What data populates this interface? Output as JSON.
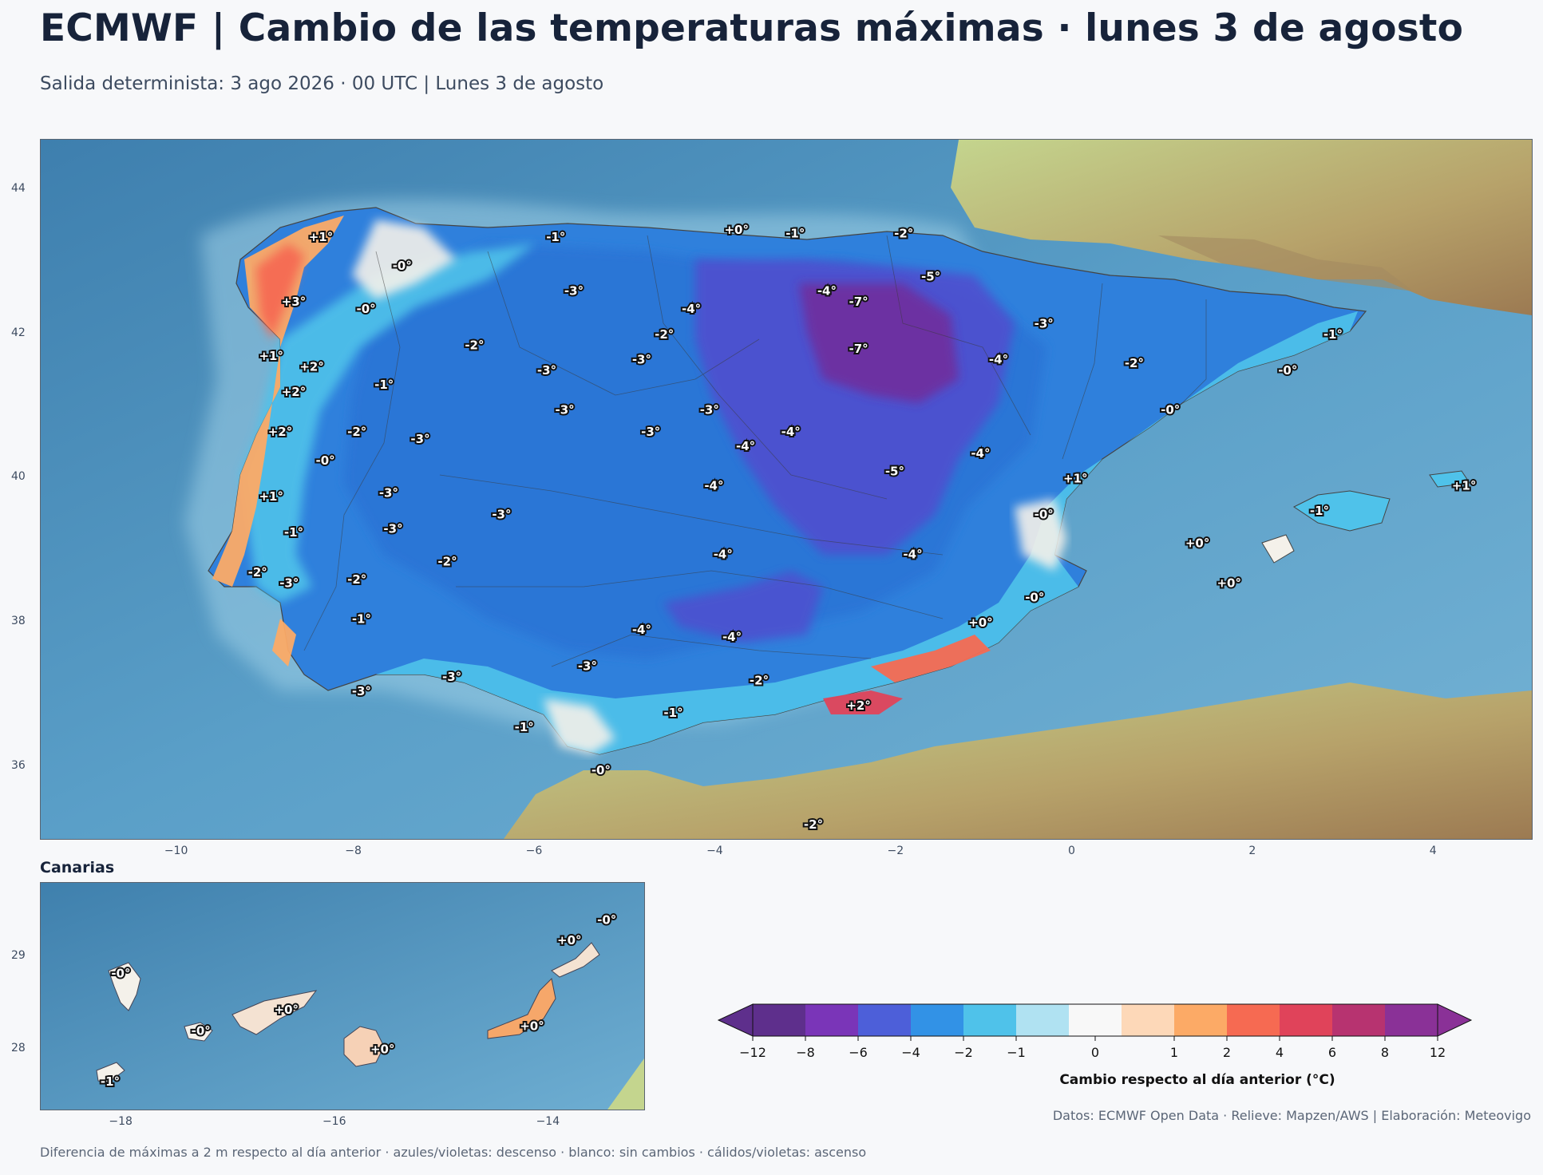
{
  "header": {
    "title": "ECMWF | Cambio de las temperaturas máximas · lunes 3 de agosto",
    "subtitle": "Salida determinista: 3 ago 2026 · 00 UTC  |  Lunes 3 de agosto"
  },
  "main_map": {
    "lon_range": [
      -11.5,
      5.0
    ],
    "lat_range": [
      35.0,
      44.7
    ],
    "x_ticks": [
      "−10",
      "−8",
      "−6",
      "−4",
      "−2",
      "0",
      "2",
      "4"
    ],
    "y_ticks": [
      "44",
      "42",
      "40",
      "38",
      "36"
    ],
    "labels": [
      {
        "lon": -8.4,
        "lat": 43.35,
        "text": "+1°"
      },
      {
        "lon": -7.5,
        "lat": 42.95,
        "text": "-0°"
      },
      {
        "lon": -5.8,
        "lat": 43.35,
        "text": "-1°"
      },
      {
        "lon": -3.8,
        "lat": 43.45,
        "text": "+0°"
      },
      {
        "lon": -3.15,
        "lat": 43.4,
        "text": "-1°"
      },
      {
        "lon": -1.95,
        "lat": 43.4,
        "text": "-2°"
      },
      {
        "lon": -8.7,
        "lat": 42.45,
        "text": "+3°"
      },
      {
        "lon": -7.9,
        "lat": 42.35,
        "text": "-0°"
      },
      {
        "lon": -5.6,
        "lat": 42.6,
        "text": "-3°"
      },
      {
        "lon": -4.3,
        "lat": 42.35,
        "text": "-4°"
      },
      {
        "lon": -2.8,
        "lat": 42.6,
        "text": "-4°"
      },
      {
        "lon": -2.45,
        "lat": 42.45,
        "text": "-7°"
      },
      {
        "lon": -1.65,
        "lat": 42.8,
        "text": "-5°"
      },
      {
        "lon": -0.4,
        "lat": 42.15,
        "text": "-3°"
      },
      {
        "lon": 2.8,
        "lat": 42.0,
        "text": "-1°"
      },
      {
        "lon": -4.6,
        "lat": 42.0,
        "text": "-2°"
      },
      {
        "lon": -6.7,
        "lat": 41.85,
        "text": "-2°"
      },
      {
        "lon": -8.95,
        "lat": 41.7,
        "text": "+1°"
      },
      {
        "lon": -8.5,
        "lat": 41.55,
        "text": "+2°"
      },
      {
        "lon": -5.9,
        "lat": 41.5,
        "text": "-3°"
      },
      {
        "lon": -4.85,
        "lat": 41.65,
        "text": "-3°"
      },
      {
        "lon": -2.45,
        "lat": 41.8,
        "text": "-7°"
      },
      {
        "lon": -0.9,
        "lat": 41.65,
        "text": "-4°"
      },
      {
        "lon": 0.6,
        "lat": 41.6,
        "text": "-2°"
      },
      {
        "lon": 2.3,
        "lat": 41.5,
        "text": "-0°"
      },
      {
        "lon": -7.7,
        "lat": 41.3,
        "text": "-1°"
      },
      {
        "lon": -8.7,
        "lat": 41.2,
        "text": "+2°"
      },
      {
        "lon": -5.7,
        "lat": 40.95,
        "text": "-3°"
      },
      {
        "lon": -4.1,
        "lat": 40.95,
        "text": "-3°"
      },
      {
        "lon": 1.0,
        "lat": 40.95,
        "text": "-0°"
      },
      {
        "lon": -8.85,
        "lat": 40.65,
        "text": "+2°"
      },
      {
        "lon": -8.0,
        "lat": 40.65,
        "text": "-2°"
      },
      {
        "lon": -7.3,
        "lat": 40.55,
        "text": "-3°"
      },
      {
        "lon": -4.75,
        "lat": 40.65,
        "text": "-3°"
      },
      {
        "lon": -3.2,
        "lat": 40.65,
        "text": "-4°"
      },
      {
        "lon": -3.7,
        "lat": 40.45,
        "text": "-4°"
      },
      {
        "lon": -1.1,
        "lat": 40.35,
        "text": "-4°"
      },
      {
        "lon": -8.35,
        "lat": 40.25,
        "text": "-0°"
      },
      {
        "lon": -2.05,
        "lat": 40.1,
        "text": "-5°"
      },
      {
        "lon": -0.05,
        "lat": 40.0,
        "text": "+1°"
      },
      {
        "lon": -4.05,
        "lat": 39.9,
        "text": "-4°"
      },
      {
        "lon": 4.25,
        "lat": 39.9,
        "text": "+1°"
      },
      {
        "lon": -8.95,
        "lat": 39.75,
        "text": "+1°"
      },
      {
        "lon": -7.65,
        "lat": 39.8,
        "text": "-3°"
      },
      {
        "lon": -6.4,
        "lat": 39.5,
        "text": "-3°"
      },
      {
        "lon": -0.4,
        "lat": 39.5,
        "text": "-0°"
      },
      {
        "lon": 2.65,
        "lat": 39.55,
        "text": "-1°"
      },
      {
        "lon": -8.7,
        "lat": 39.25,
        "text": "-1°"
      },
      {
        "lon": -7.6,
        "lat": 39.3,
        "text": "-3°"
      },
      {
        "lon": 1.3,
        "lat": 39.1,
        "text": "+0°"
      },
      {
        "lon": -3.95,
        "lat": 38.95,
        "text": "-4°"
      },
      {
        "lon": -1.85,
        "lat": 38.95,
        "text": "-4°"
      },
      {
        "lon": -7.0,
        "lat": 38.85,
        "text": "-2°"
      },
      {
        "lon": -9.1,
        "lat": 38.7,
        "text": "-2°"
      },
      {
        "lon": -8.75,
        "lat": 38.55,
        "text": "-3°"
      },
      {
        "lon": -8.0,
        "lat": 38.6,
        "text": "-2°"
      },
      {
        "lon": 1.65,
        "lat": 38.55,
        "text": "+0°"
      },
      {
        "lon": -0.5,
        "lat": 38.35,
        "text": "-0°"
      },
      {
        "lon": -7.95,
        "lat": 38.05,
        "text": "-1°"
      },
      {
        "lon": -1.1,
        "lat": 38.0,
        "text": "+0°"
      },
      {
        "lon": -4.85,
        "lat": 37.9,
        "text": "-4°"
      },
      {
        "lon": -3.85,
        "lat": 37.8,
        "text": "-4°"
      },
      {
        "lon": -5.45,
        "lat": 37.4,
        "text": "-3°"
      },
      {
        "lon": -6.95,
        "lat": 37.25,
        "text": "-3°"
      },
      {
        "lon": -3.55,
        "lat": 37.2,
        "text": "-2°"
      },
      {
        "lon": -7.95,
        "lat": 37.05,
        "text": "-3°"
      },
      {
        "lon": -2.45,
        "lat": 36.85,
        "text": "+2°"
      },
      {
        "lon": -4.5,
        "lat": 36.75,
        "text": "-1°"
      },
      {
        "lon": -6.15,
        "lat": 36.55,
        "text": "-1°"
      },
      {
        "lon": -5.3,
        "lat": 35.95,
        "text": "-0°"
      },
      {
        "lon": -2.95,
        "lat": 35.2,
        "text": "-2°"
      }
    ]
  },
  "inset": {
    "title": "Canarias",
    "lon_range": [
      -18.75,
      -13.1
    ],
    "lat_range": [
      27.35,
      29.8
    ],
    "x_ticks": [
      "−18",
      "−16",
      "−14"
    ],
    "y_ticks": [
      "29",
      "28"
    ],
    "labels": [
      {
        "lon": -18.0,
        "lat": 28.82,
        "text": "-0°"
      },
      {
        "lon": -16.45,
        "lat": 28.43,
        "text": "+0°"
      },
      {
        "lon": -17.25,
        "lat": 28.2,
        "text": "-0°"
      },
      {
        "lon": -15.55,
        "lat": 28.0,
        "text": "+0°"
      },
      {
        "lon": -18.1,
        "lat": 27.65,
        "text": "-1°"
      },
      {
        "lon": -14.15,
        "lat": 28.25,
        "text": "+0°"
      },
      {
        "lon": -13.8,
        "lat": 29.18,
        "text": "+0°"
      },
      {
        "lon": -13.45,
        "lat": 29.4,
        "text": "-0°"
      }
    ]
  },
  "colorbar": {
    "label": "Cambio respecto al día anterior (°C)",
    "ticks": [
      "−12",
      "−8",
      "−6",
      "−4",
      "−2",
      "−1",
      "0",
      "1",
      "2",
      "4",
      "6",
      "8",
      "12"
    ],
    "colors": [
      "#5e2f8c",
      "#7a35b8",
      "#4d5fd9",
      "#3292e6",
      "#4fc2ea",
      "#b0e2f2",
      "#f8f8f8",
      "#fdd8b8",
      "#fcaa66",
      "#f66a52",
      "#e0435a",
      "#b73370",
      "#8a3197"
    ]
  },
  "footer": {
    "source": "Datos: ECMWF Open Data · Relieve: Mapzen/AWS  |  Elaboración: Meteovigo",
    "note": "Diferencia de máximas a 2 m respecto al día anterior · azules/violetas: descenso · blanco: sin cambios · cálidos/violetas: ascenso"
  }
}
